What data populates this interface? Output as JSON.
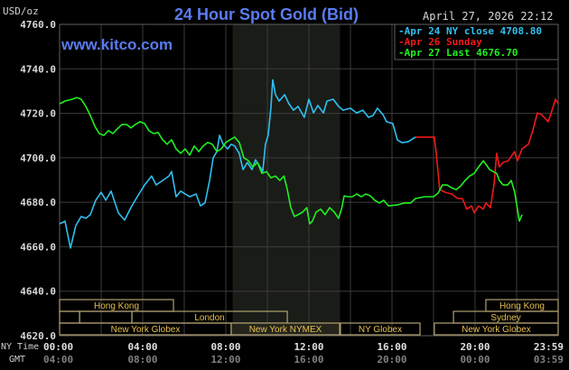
{
  "colors": {
    "title": "#5a7cf0",
    "apr24": "#30c0f0",
    "apr26": "#f01818",
    "apr27": "#20f020",
    "session": "#e8c050",
    "grid": "#3c3c3c",
    "shade": "#1a1c18"
  },
  "chart_data": {
    "type": "line",
    "title": "24 Hour Spot Gold (Bid)",
    "watermark": "www.kitco.com",
    "datetime": "April 27, 2026 22:12",
    "ylabel": "USD/oz",
    "ylim": [
      4620,
      4760
    ],
    "xlim": [
      0,
      24
    ],
    "y_ticks": [
      "4760.0",
      "4740.0",
      "4720.0",
      "4700.0",
      "4680.0",
      "4660.0",
      "4640.0",
      "4620.0"
    ],
    "y_tick_values": [
      4760,
      4740,
      4720,
      4700,
      4680,
      4660,
      4640,
      4620
    ],
    "x_row_labels": {
      "ny": "NY Time",
      "gmt": "GMT"
    },
    "x_ticks_ny": [
      "00:00",
      "04:00",
      "08:00",
      "12:00",
      "16:00",
      "20:00",
      "23:59"
    ],
    "x_ticks_gmt": [
      "04:00",
      "08:00",
      "12:00",
      "16:00",
      "20:00",
      "00:00",
      "03:59"
    ],
    "x_tick_hours": [
      0,
      4,
      8,
      12,
      16,
      20,
      24
    ],
    "grid": true,
    "highlight_hours": [
      8.33,
      13.5
    ],
    "legend_position": "top-right",
    "series": [
      {
        "name": "Apr 24 NY close 4708.80",
        "color_key": "apr24",
        "points": [
          [
            0,
            4670.3
          ],
          [
            0.26,
            4671.5
          ],
          [
            0.52,
            4659.4
          ],
          [
            0.78,
            4669.5
          ],
          [
            1.04,
            4673.6
          ],
          [
            1.26,
            4672.8
          ],
          [
            1.48,
            4674.4
          ],
          [
            1.74,
            4680.9
          ],
          [
            2.0,
            4684.5
          ],
          [
            2.22,
            4680.9
          ],
          [
            2.48,
            4685
          ],
          [
            2.83,
            4675.2
          ],
          [
            3.13,
            4672
          ],
          [
            3.43,
            4677.6
          ],
          [
            3.74,
            4682.5
          ],
          [
            4.09,
            4687.8
          ],
          [
            4.43,
            4691.8
          ],
          [
            4.65,
            4687.8
          ],
          [
            4.96,
            4689.8
          ],
          [
            5.26,
            4691.8
          ],
          [
            5.39,
            4693.8
          ],
          [
            5.61,
            4682.5
          ],
          [
            5.83,
            4685
          ],
          [
            6.26,
            4682.5
          ],
          [
            6.57,
            4683.7
          ],
          [
            6.78,
            4678.4
          ],
          [
            7.0,
            4679.7
          ],
          [
            7.22,
            4689.8
          ],
          [
            7.39,
            4700
          ],
          [
            7.57,
            4702.8
          ],
          [
            7.7,
            4710.1
          ],
          [
            7.87,
            4706.1
          ],
          [
            8.09,
            4704
          ],
          [
            8.26,
            4706.1
          ],
          [
            8.43,
            4705.3
          ],
          [
            8.65,
            4702
          ],
          [
            8.83,
            4694.7
          ],
          [
            9.04,
            4697.9
          ],
          [
            9.26,
            4694.7
          ],
          [
            9.43,
            4699.1
          ],
          [
            9.65,
            4695.9
          ],
          [
            9.78,
            4693.8
          ],
          [
            9.91,
            4706.1
          ],
          [
            10.04,
            4710.1
          ],
          [
            10.17,
            4722.3
          ],
          [
            10.26,
            4735
          ],
          [
            10.39,
            4728.4
          ],
          [
            10.57,
            4725.5
          ],
          [
            10.83,
            4728.4
          ],
          [
            11.04,
            4724.3
          ],
          [
            11.26,
            4721.4
          ],
          [
            11.48,
            4723.1
          ],
          [
            11.78,
            4718.2
          ],
          [
            12.0,
            4726.3
          ],
          [
            12.22,
            4720.2
          ],
          [
            12.43,
            4723.5
          ],
          [
            12.7,
            4720.2
          ],
          [
            12.87,
            4725.5
          ],
          [
            13.17,
            4726.3
          ],
          [
            13.43,
            4723.1
          ],
          [
            13.65,
            4721.4
          ],
          [
            14.0,
            4722.3
          ],
          [
            14.3,
            4720.2
          ],
          [
            14.6,
            4721.4
          ],
          [
            14.87,
            4718.2
          ],
          [
            15.09,
            4719
          ],
          [
            15.3,
            4722.3
          ],
          [
            15.57,
            4719.4
          ],
          [
            15.74,
            4716.2
          ],
          [
            16.04,
            4715.4
          ],
          [
            16.26,
            4708
          ],
          [
            16.48,
            4706.8
          ],
          [
            16.78,
            4707.2
          ],
          [
            17.13,
            4709.3
          ]
        ]
      },
      {
        "name": "Apr 26 Sunday",
        "color_key": "apr26",
        "points": [
          [
            17.13,
            4709.3
          ],
          [
            18.04,
            4709.3
          ],
          [
            18.13,
            4702
          ],
          [
            18.3,
            4685.7
          ],
          [
            18.57,
            4684.5
          ],
          [
            18.87,
            4683.7
          ],
          [
            19.17,
            4681.7
          ],
          [
            19.39,
            4681.7
          ],
          [
            19.6,
            4676.9
          ],
          [
            19.83,
            4678.4
          ],
          [
            19.96,
            4675.2
          ],
          [
            20.17,
            4678.4
          ],
          [
            20.39,
            4676.9
          ],
          [
            20.52,
            4679.7
          ],
          [
            20.74,
            4677.6
          ],
          [
            20.91,
            4687.8
          ],
          [
            21.04,
            4702
          ],
          [
            21.17,
            4695.9
          ],
          [
            21.35,
            4697.9
          ],
          [
            21.6,
            4698.7
          ],
          [
            21.9,
            4702.8
          ],
          [
            22.04,
            4698.7
          ],
          [
            22.26,
            4704
          ],
          [
            22.57,
            4706.1
          ],
          [
            22.78,
            4712.2
          ],
          [
            23.0,
            4720.2
          ],
          [
            23.2,
            4719.4
          ],
          [
            23.52,
            4716.2
          ],
          [
            23.74,
            4722.3
          ],
          [
            23.87,
            4726.3
          ],
          [
            24.0,
            4724.3
          ]
        ]
      },
      {
        "name": "Apr 27 Last 4676.70",
        "color_key": "apr27",
        "points": [
          [
            0,
            4724.3
          ],
          [
            0.26,
            4725.5
          ],
          [
            0.6,
            4726.3
          ],
          [
            0.83,
            4727.1
          ],
          [
            1.04,
            4726.3
          ],
          [
            1.26,
            4723.1
          ],
          [
            1.48,
            4719
          ],
          [
            1.7,
            4714.1
          ],
          [
            1.91,
            4710.9
          ],
          [
            2.13,
            4710.1
          ],
          [
            2.35,
            4712.2
          ],
          [
            2.57,
            4710.9
          ],
          [
            2.78,
            4713
          ],
          [
            3.0,
            4715
          ],
          [
            3.22,
            4715
          ],
          [
            3.43,
            4713.4
          ],
          [
            3.65,
            4715
          ],
          [
            3.87,
            4716.2
          ],
          [
            4.09,
            4715.4
          ],
          [
            4.3,
            4712.2
          ],
          [
            4.52,
            4710.9
          ],
          [
            4.74,
            4711.4
          ],
          [
            4.96,
            4708.1
          ],
          [
            5.17,
            4706.1
          ],
          [
            5.39,
            4708.1
          ],
          [
            5.61,
            4704
          ],
          [
            5.83,
            4702
          ],
          [
            6.04,
            4704
          ],
          [
            6.26,
            4701.2
          ],
          [
            6.48,
            4705.3
          ],
          [
            6.7,
            4702.8
          ],
          [
            6.91,
            4705.3
          ],
          [
            7.13,
            4706.9
          ],
          [
            7.35,
            4706.1
          ],
          [
            7.57,
            4702.8
          ],
          [
            7.78,
            4704
          ],
          [
            8.0,
            4706.9
          ],
          [
            8.2,
            4708.1
          ],
          [
            8.43,
            4709.3
          ],
          [
            8.65,
            4706.9
          ],
          [
            8.87,
            4700
          ],
          [
            9.09,
            4698.7
          ],
          [
            9.3,
            4695.9
          ],
          [
            9.52,
            4697.9
          ],
          [
            9.74,
            4693
          ],
          [
            9.96,
            4693.8
          ],
          [
            10.17,
            4691
          ],
          [
            10.39,
            4691.8
          ],
          [
            10.6,
            4689.8
          ],
          [
            10.8,
            4691.8
          ],
          [
            10.96,
            4685.7
          ],
          [
            11.13,
            4677.6
          ],
          [
            11.3,
            4673.6
          ],
          [
            11.48,
            4674.4
          ],
          [
            11.7,
            4675.6
          ],
          [
            11.9,
            4677.6
          ],
          [
            12.04,
            4670.3
          ],
          [
            12.17,
            4671.5
          ],
          [
            12.35,
            4675.6
          ],
          [
            12.57,
            4676.9
          ],
          [
            12.78,
            4674.4
          ],
          [
            13.0,
            4677.6
          ],
          [
            13.22,
            4675.6
          ],
          [
            13.43,
            4672.8
          ],
          [
            13.57,
            4676.9
          ],
          [
            13.7,
            4682.9
          ],
          [
            13.87,
            4682.5
          ],
          [
            14.09,
            4682.5
          ],
          [
            14.3,
            4683.7
          ],
          [
            14.52,
            4682.5
          ],
          [
            14.74,
            4683.7
          ],
          [
            14.96,
            4682.9
          ],
          [
            15.17,
            4680.9
          ],
          [
            15.39,
            4679.7
          ],
          [
            15.6,
            4680.9
          ],
          [
            15.83,
            4678.4
          ],
          [
            16.26,
            4678.8
          ],
          [
            16.6,
            4679.7
          ],
          [
            16.9,
            4679.7
          ],
          [
            17.13,
            4681.7
          ],
          [
            17.57,
            4682.5
          ],
          [
            18.0,
            4682.5
          ],
          [
            18.22,
            4684.1
          ],
          [
            18.43,
            4687.8
          ],
          [
            18.65,
            4687.8
          ],
          [
            18.87,
            4686.5
          ],
          [
            19.09,
            4685.7
          ],
          [
            19.3,
            4687.3
          ],
          [
            19.52,
            4689.8
          ],
          [
            19.74,
            4691.8
          ],
          [
            19.96,
            4693
          ],
          [
            20.17,
            4695.9
          ],
          [
            20.4,
            4698.7
          ],
          [
            20.52,
            4697.1
          ],
          [
            20.7,
            4694.7
          ],
          [
            20.87,
            4693.8
          ],
          [
            21.04,
            4693
          ],
          [
            21.17,
            4689.8
          ],
          [
            21.35,
            4687.8
          ],
          [
            21.57,
            4687.8
          ],
          [
            21.74,
            4689.8
          ],
          [
            21.9,
            4684.9
          ],
          [
            22.04,
            4676.9
          ],
          [
            22.13,
            4671.5
          ],
          [
            22.26,
            4674.4
          ]
        ]
      }
    ],
    "sessions": [
      {
        "label": "Hong Kong",
        "row": 0,
        "start": 0,
        "end": 5.48,
        "show_label": true
      },
      {
        "label": "Hong Kong",
        "row": 0,
        "start": 20.52,
        "end": 24,
        "show_label": true
      },
      {
        "label": "",
        "row": 1,
        "start": 0,
        "end": 0.96,
        "show_label": false
      },
      {
        "label": "",
        "row": 1,
        "start": 0.96,
        "end": 3.48,
        "show_label": false
      },
      {
        "label": "London",
        "row": 1,
        "start": 3.48,
        "end": 10.96,
        "show_label": true
      },
      {
        "label": "Sydney",
        "row": 1,
        "start": 18.96,
        "end": 24,
        "show_label": true
      },
      {
        "label": "New York Globex",
        "row": 2,
        "start": 0,
        "end": 8.26,
        "show_label": true
      },
      {
        "label": "New York NYMEX",
        "row": 2,
        "start": 8.26,
        "end": 13.48,
        "show_label": true
      },
      {
        "label": "NY Globex",
        "row": 2,
        "start": 13.52,
        "end": 17.35,
        "show_label": true
      },
      {
        "label": "New York Globex",
        "row": 2,
        "start": 18.04,
        "end": 24,
        "show_label": true
      }
    ]
  }
}
